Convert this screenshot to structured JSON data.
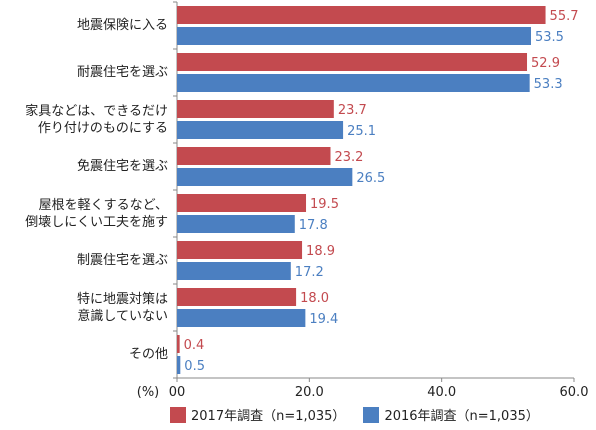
{
  "colors": {
    "s2017": "#c34a4f",
    "s2016": "#4b7fc1",
    "axis": "#888888"
  },
  "chart_data": {
    "type": "bar",
    "orientation": "horizontal",
    "categories": [
      "地震保険に入る",
      "耐震住宅を選ぶ",
      "家具などは、できるだけ\n作り付けのものにする",
      "免震住宅を選ぶ",
      "屋根を軽くするなど、\n倒壊しにくい工夫を施す",
      "制震住宅を選ぶ",
      "特に地震対策は\n意識していない",
      "その他"
    ],
    "series": [
      {
        "name": "2017年調査（n=1,035）",
        "values": [
          55.7,
          52.9,
          23.7,
          23.2,
          19.5,
          18.9,
          18.0,
          0.4
        ]
      },
      {
        "name": "2016年調査（n=1,035）",
        "values": [
          53.5,
          53.3,
          25.1,
          26.5,
          17.8,
          17.2,
          19.4,
          0.5
        ]
      }
    ],
    "xlim": [
      0,
      60
    ],
    "x_ticks": [
      "00",
      "20.0",
      "40.0",
      "60.0"
    ],
    "x_tick_values": [
      0,
      20,
      40,
      60
    ],
    "x_unit": "(%)",
    "legend_position": "bottom",
    "grid": false
  }
}
